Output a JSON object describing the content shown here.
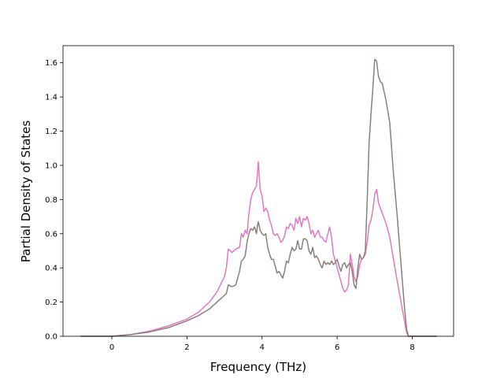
{
  "chart_data": {
    "type": "line",
    "xlabel": "Frequency (THz)",
    "ylabel": "Partial Density of States",
    "xlim": [
      -1.3,
      9.1
    ],
    "ylim": [
      0.0,
      1.7
    ],
    "xticks": [
      0,
      2,
      4,
      6,
      8
    ],
    "yticks": [
      0.0,
      0.2,
      0.4,
      0.6,
      0.8,
      1.0,
      1.2,
      1.4,
      1.6
    ],
    "xtick_labels": [
      "0",
      "2",
      "4",
      "6",
      "8"
    ],
    "ytick_labels": [
      "0.0",
      "0.2",
      "0.4",
      "0.6",
      "0.8",
      "1.0",
      "1.2",
      "1.4",
      "1.6"
    ],
    "grid": false,
    "series": [
      {
        "color": "#e377c2",
        "x": [
          -0.83,
          0.0,
          0.5,
          1.0,
          1.5,
          2.0,
          2.3,
          2.6,
          2.8,
          3.0,
          3.05,
          3.1,
          3.2,
          3.3,
          3.4,
          3.45,
          3.5,
          3.55,
          3.6,
          3.65,
          3.7,
          3.75,
          3.8,
          3.85,
          3.88,
          3.9,
          3.95,
          4.0,
          4.05,
          4.1,
          4.15,
          4.2,
          4.25,
          4.3,
          4.35,
          4.4,
          4.45,
          4.5,
          4.55,
          4.6,
          4.65,
          4.7,
          4.75,
          4.8,
          4.85,
          4.9,
          4.95,
          5.0,
          5.05,
          5.1,
          5.15,
          5.2,
          5.25,
          5.3,
          5.35,
          5.4,
          5.45,
          5.5,
          5.55,
          5.6,
          5.65,
          5.7,
          5.75,
          5.8,
          5.85,
          5.9,
          5.95,
          6.0,
          6.05,
          6.1,
          6.15,
          6.2,
          6.25,
          6.3,
          6.35,
          6.4,
          6.45,
          6.5,
          6.55,
          6.6,
          6.65,
          6.7,
          6.75,
          6.8,
          6.85,
          6.9,
          6.95,
          7.0,
          7.05,
          7.1,
          7.15,
          7.2,
          7.3,
          7.4,
          7.5,
          7.6,
          7.7,
          7.8,
          7.85,
          7.9,
          8.0,
          8.3,
          8.65
        ],
        "values": [
          0.0,
          0.0,
          0.01,
          0.03,
          0.06,
          0.1,
          0.14,
          0.2,
          0.26,
          0.35,
          0.4,
          0.51,
          0.49,
          0.51,
          0.52,
          0.6,
          0.58,
          0.62,
          0.6,
          0.72,
          0.8,
          0.84,
          0.86,
          0.88,
          0.96,
          1.02,
          0.86,
          0.82,
          0.73,
          0.75,
          0.73,
          0.68,
          0.65,
          0.6,
          0.59,
          0.6,
          0.58,
          0.55,
          0.56,
          0.59,
          0.64,
          0.63,
          0.66,
          0.65,
          0.62,
          0.69,
          0.66,
          0.7,
          0.64,
          0.69,
          0.68,
          0.7,
          0.66,
          0.6,
          0.62,
          0.58,
          0.6,
          0.62,
          0.58,
          0.58,
          0.56,
          0.55,
          0.6,
          0.64,
          0.58,
          0.48,
          0.44,
          0.4,
          0.36,
          0.32,
          0.28,
          0.26,
          0.27,
          0.3,
          0.48,
          0.42,
          0.35,
          0.32,
          0.35,
          0.42,
          0.45,
          0.46,
          0.48,
          0.55,
          0.65,
          0.68,
          0.74,
          0.83,
          0.86,
          0.78,
          0.75,
          0.72,
          0.66,
          0.58,
          0.45,
          0.32,
          0.2,
          0.08,
          0.02,
          0.0,
          0.0,
          0.0,
          0.0
        ]
      },
      {
        "color": "#8c7f7a",
        "x": [
          -0.83,
          0.0,
          0.5,
          1.0,
          1.5,
          2.0,
          2.3,
          2.6,
          2.8,
          3.0,
          3.05,
          3.1,
          3.2,
          3.3,
          3.4,
          3.45,
          3.5,
          3.55,
          3.6,
          3.65,
          3.7,
          3.75,
          3.8,
          3.85,
          3.88,
          3.9,
          3.95,
          4.0,
          4.05,
          4.1,
          4.15,
          4.2,
          4.25,
          4.3,
          4.35,
          4.4,
          4.45,
          4.5,
          4.55,
          4.6,
          4.65,
          4.7,
          4.75,
          4.8,
          4.85,
          4.9,
          4.95,
          5.0,
          5.05,
          5.1,
          5.15,
          5.2,
          5.25,
          5.3,
          5.35,
          5.4,
          5.45,
          5.5,
          5.55,
          5.6,
          5.65,
          5.7,
          5.75,
          5.8,
          5.85,
          5.9,
          5.95,
          6.0,
          6.05,
          6.1,
          6.15,
          6.2,
          6.25,
          6.3,
          6.35,
          6.4,
          6.45,
          6.5,
          6.55,
          6.6,
          6.65,
          6.7,
          6.75,
          6.8,
          6.85,
          6.9,
          6.95,
          7.0,
          7.05,
          7.1,
          7.15,
          7.2,
          7.3,
          7.4,
          7.5,
          7.6,
          7.7,
          7.8,
          7.85,
          7.9,
          8.0,
          8.3,
          8.65
        ],
        "values": [
          0.0,
          0.0,
          0.01,
          0.025,
          0.05,
          0.09,
          0.12,
          0.16,
          0.2,
          0.24,
          0.25,
          0.3,
          0.29,
          0.3,
          0.38,
          0.44,
          0.45,
          0.47,
          0.55,
          0.6,
          0.63,
          0.62,
          0.64,
          0.6,
          0.65,
          0.67,
          0.62,
          0.6,
          0.59,
          0.6,
          0.52,
          0.48,
          0.45,
          0.45,
          0.41,
          0.37,
          0.38,
          0.36,
          0.34,
          0.38,
          0.44,
          0.43,
          0.48,
          0.52,
          0.5,
          0.51,
          0.56,
          0.51,
          0.51,
          0.57,
          0.57,
          0.56,
          0.5,
          0.48,
          0.52,
          0.46,
          0.47,
          0.45,
          0.42,
          0.4,
          0.44,
          0.42,
          0.43,
          0.42,
          0.44,
          0.42,
          0.43,
          0.45,
          0.41,
          0.38,
          0.42,
          0.43,
          0.4,
          0.42,
          0.43,
          0.38,
          0.3,
          0.28,
          0.4,
          0.48,
          0.45,
          0.46,
          0.5,
          0.8,
          1.13,
          1.3,
          1.45,
          1.62,
          1.61,
          1.52,
          1.49,
          1.48,
          1.38,
          1.25,
          0.95,
          0.7,
          0.42,
          0.15,
          0.04,
          0.0,
          0.0,
          0.0,
          0.0
        ]
      }
    ]
  }
}
